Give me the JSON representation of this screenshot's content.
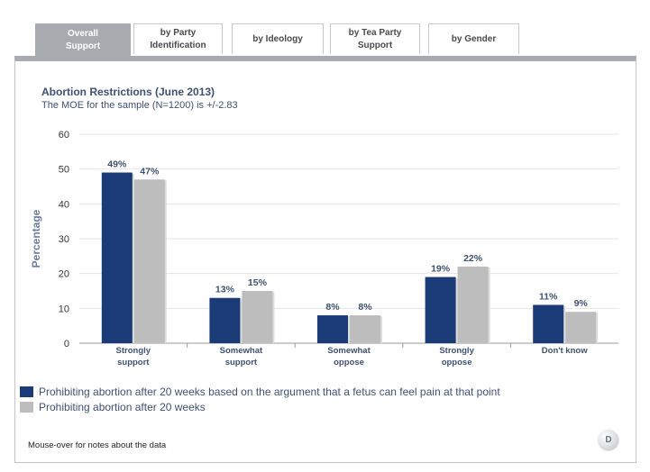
{
  "tabs": [
    {
      "label": "Overall\nSupport",
      "active": true
    },
    {
      "label": "by Party\nIdentification",
      "active": false
    },
    {
      "label": "by Ideology",
      "active": false
    },
    {
      "label": "by Tea Party\nSupport",
      "active": false
    },
    {
      "label": "by Gender",
      "active": false
    }
  ],
  "chart_title": "Abortion Restrictions (June 2013)",
  "chart_subtitle": "The MOE for the sample (N=1200) is +/-2.83",
  "note": "Mouse-over for notes about the data",
  "logo_letter": "D",
  "colors": {
    "series1": "#1b3a78",
    "series2": "#bdbdbd",
    "text": "#3f5070",
    "tab_active": "#a7abb0"
  },
  "chart_data": {
    "type": "bar",
    "ylabel": "Percentage",
    "ylim": [
      0,
      60
    ],
    "yticks": [
      0,
      10,
      20,
      30,
      40,
      50,
      60
    ],
    "grid": true,
    "legend_position": "bottom-left",
    "categories": [
      "Strongly\nsupport",
      "Somewhat\nsupport",
      "Somewhat\noppose",
      "Strongly\noppose",
      "Don't know"
    ],
    "series": [
      {
        "name": "Prohibiting abortion after 20 weeks based on the argument that a fetus can feel pain at that point",
        "values": [
          49,
          13,
          8,
          19,
          11
        ],
        "labels": [
          "49%",
          "13%",
          "8%",
          "19%",
          "11%"
        ]
      },
      {
        "name": "Prohibiting abortion after 20 weeks",
        "values": [
          47,
          15,
          8,
          22,
          9
        ],
        "labels": [
          "47%",
          "15%",
          "8%",
          "22%",
          "9%"
        ]
      }
    ]
  }
}
